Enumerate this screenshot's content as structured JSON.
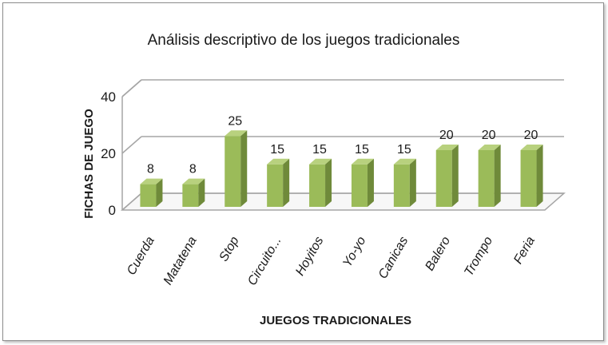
{
  "chart_data": {
    "type": "bar",
    "title": "Análisis descriptivo de los juegos tradicionales",
    "xlabel": "JUEGOS TRADICIONALES",
    "ylabel": "FICHAS DE JUEGO",
    "categories": [
      "Cuerda",
      "Matatena",
      "Stop",
      "Circuito...",
      "Hoyitos",
      "Yo-yo",
      "Canicas",
      "Balero",
      "Trompo",
      "Feria"
    ],
    "values": [
      8,
      8,
      25,
      15,
      15,
      15,
      15,
      20,
      20,
      20
    ],
    "ylim": [
      0,
      40
    ],
    "yticks": [
      0,
      20,
      40
    ],
    "grid": true,
    "legend": "none",
    "bar_color": "#9bbb59"
  }
}
